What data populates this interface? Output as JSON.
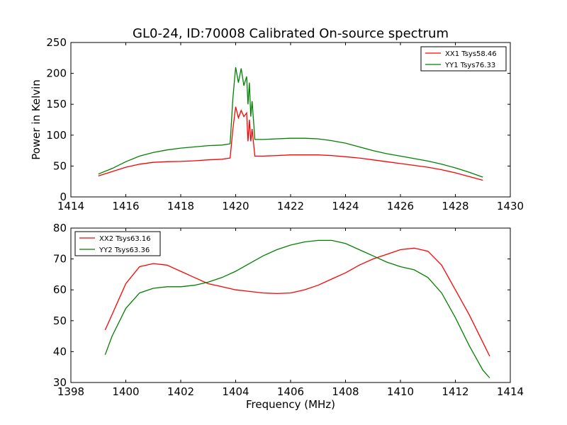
{
  "figure": {
    "title": "GL0-24, ID:70008 Calibrated On-source spectrum"
  },
  "chart_data": [
    {
      "type": "line",
      "title": "GL0-24, ID:70008 Calibrated On-source spectrum",
      "xlabel": "",
      "ylabel": "Power in Kelvin",
      "xlim": [
        1414,
        1430
      ],
      "ylim": [
        0,
        250
      ],
      "xticks": [
        1414,
        1416,
        1418,
        1420,
        1422,
        1424,
        1426,
        1428,
        1430
      ],
      "yticks": [
        0,
        50,
        100,
        150,
        200,
        250
      ],
      "grid": false,
      "legend_position": "top-right",
      "series": [
        {
          "name": "XX1 Tsys58.46",
          "color": "#ff0000",
          "x": [
            1415,
            1415.5,
            1416,
            1416.5,
            1417,
            1417.5,
            1418,
            1418.5,
            1419,
            1419.5,
            1419.8,
            1419.9,
            1420.0,
            1420.1,
            1420.2,
            1420.3,
            1420.4,
            1420.45,
            1420.5,
            1420.55,
            1420.6,
            1420.7,
            1421,
            1421.5,
            1422,
            1422.5,
            1423,
            1423.5,
            1424,
            1424.5,
            1425,
            1425.5,
            1426,
            1426.5,
            1427,
            1427.5,
            1428,
            1428.5,
            1429
          ],
          "y": [
            34,
            41,
            48,
            53,
            56,
            57,
            57.5,
            58.5,
            60,
            61,
            63,
            110,
            146,
            128,
            140,
            130,
            136,
            90,
            125,
            90,
            110,
            66,
            66,
            67,
            68,
            68,
            68,
            67,
            65,
            63,
            60,
            57,
            54,
            51,
            48,
            44,
            39,
            33,
            27
          ]
        },
        {
          "name": "YY1 Tsys76.33",
          "color": "#008000",
          "x": [
            1415,
            1415.5,
            1416,
            1416.5,
            1417,
            1417.5,
            1418,
            1418.5,
            1419,
            1419.5,
            1419.8,
            1419.9,
            1420.0,
            1420.1,
            1420.2,
            1420.3,
            1420.4,
            1420.45,
            1420.5,
            1420.55,
            1420.6,
            1420.7,
            1421,
            1421.5,
            1422,
            1422.5,
            1423,
            1423.5,
            1424,
            1424.5,
            1425,
            1425.5,
            1426,
            1426.5,
            1427,
            1427.5,
            1428,
            1428.5,
            1429
          ],
          "y": [
            37,
            46,
            57,
            66,
            72,
            76,
            79,
            81,
            83,
            84,
            86,
            160,
            210,
            185,
            208,
            180,
            195,
            150,
            185,
            130,
            155,
            93,
            93,
            94,
            95,
            95,
            94,
            91,
            87,
            81,
            75,
            70,
            66,
            62,
            58,
            53,
            47,
            40,
            32
          ]
        }
      ]
    },
    {
      "type": "line",
      "title": "",
      "xlabel": "Frequency (MHz)",
      "ylabel": "",
      "xlim": [
        1398,
        1414
      ],
      "ylim": [
        30,
        80
      ],
      "xticks": [
        1398,
        1400,
        1402,
        1404,
        1406,
        1408,
        1410,
        1412,
        1414
      ],
      "yticks": [
        30,
        40,
        50,
        60,
        70,
        80
      ],
      "grid": false,
      "legend_position": "top-left",
      "series": [
        {
          "name": "XX2 Tsys63.16",
          "color": "#ff0000",
          "x": [
            1399.25,
            1399.5,
            1400,
            1400.5,
            1401,
            1401.5,
            1402,
            1402.5,
            1403,
            1403.5,
            1404,
            1404.5,
            1405,
            1405.5,
            1406,
            1406.5,
            1407,
            1407.5,
            1408,
            1408.5,
            1409,
            1409.5,
            1410,
            1410.5,
            1411,
            1411.5,
            1412,
            1412.5,
            1413,
            1413.25
          ],
          "y": [
            47,
            52,
            62,
            67.5,
            68.5,
            68,
            66,
            64,
            62,
            61,
            60,
            59.5,
            59,
            58.8,
            59,
            60,
            61.5,
            63.5,
            65.5,
            68,
            70,
            71.5,
            73,
            73.5,
            72.5,
            68,
            60,
            52,
            43,
            38.5
          ]
        },
        {
          "name": "YY2 Tsys63.36",
          "color": "#008000",
          "x": [
            1399.25,
            1399.5,
            1400,
            1400.5,
            1401,
            1401.5,
            1402,
            1402.5,
            1403,
            1403.5,
            1404,
            1404.5,
            1405,
            1405.5,
            1406,
            1406.5,
            1407,
            1407.5,
            1408,
            1408.5,
            1409,
            1409.5,
            1410,
            1410.5,
            1411,
            1411.5,
            1412,
            1412.5,
            1413,
            1413.25
          ],
          "y": [
            39,
            45,
            54,
            59,
            60.5,
            61,
            61,
            61.5,
            62.5,
            64,
            66,
            68.5,
            71,
            73,
            74.5,
            75.5,
            76,
            76,
            75,
            73,
            71,
            69,
            67.5,
            66.5,
            64,
            59,
            51,
            42,
            34,
            31.5
          ]
        }
      ]
    }
  ]
}
